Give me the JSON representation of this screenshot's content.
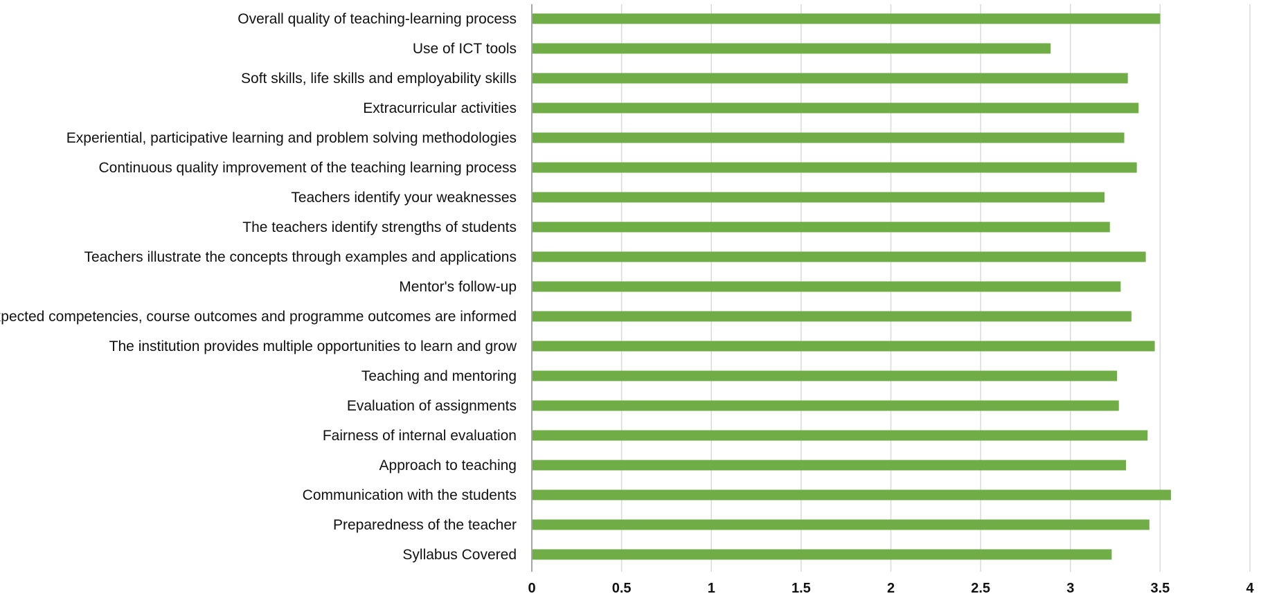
{
  "chart_data": {
    "type": "bar",
    "orientation": "horizontal",
    "categories": [
      "Overall quality of teaching-learning process",
      "Use of ICT tools",
      "Soft skills, life skills and employability skills",
      "Extracurricular activities",
      "Experiential, participative learning and problem solving methodologies",
      "Continuous quality improvement of the teaching learning process",
      "Teachers identify your weaknesses",
      "The teachers identify strengths of students",
      "Teachers illustrate the concepts through examples and applications",
      "Mentor's follow-up",
      "Expected competencies, course outcomes and programme outcomes are informed",
      "The institution provides multiple opportunities to learn and grow",
      "Teaching and mentoring",
      "Evaluation of assignments",
      "Fairness of internal evaluation",
      "Approach to teaching",
      "Communication with the students",
      "Preparedness of the teacher",
      "Syllabus Covered"
    ],
    "values": [
      3.5,
      2.89,
      3.32,
      3.38,
      3.3,
      3.37,
      3.19,
      3.22,
      3.42,
      3.28,
      3.34,
      3.47,
      3.26,
      3.27,
      3.43,
      3.31,
      3.56,
      3.44,
      3.23
    ],
    "xlim": [
      0,
      4
    ],
    "xticks": [
      0,
      0.5,
      1,
      1.5,
      2,
      2.5,
      3,
      3.5,
      4
    ],
    "xtick_labels": [
      "0",
      "0.5",
      "1",
      "1.5",
      "2",
      "2.5",
      "3",
      "3.5",
      "4"
    ],
    "grid": "vertical",
    "bar_color": "#70ad47",
    "grid_color": "#d9d9d9",
    "axis_color": "#a6a6a6",
    "title": "",
    "xlabel": "",
    "ylabel": ""
  }
}
